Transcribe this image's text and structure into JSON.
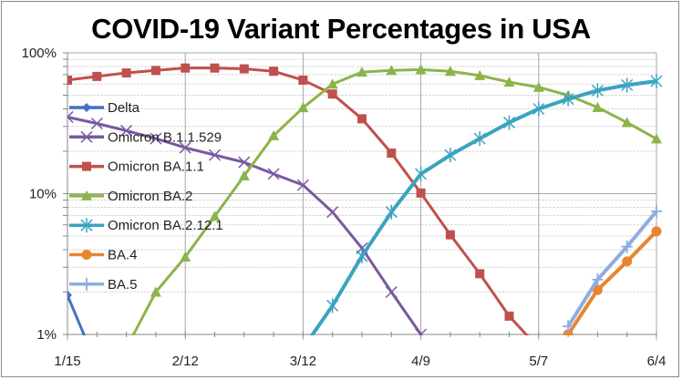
{
  "chart_data": {
    "type": "line",
    "title": "COVID-19 Variant Percentages in USA",
    "xlabel": "",
    "ylabel": "",
    "yscale": "log",
    "ylim": [
      1,
      100
    ],
    "y_ticks": [
      {
        "value": 1,
        "label": "1%"
      },
      {
        "value": 10,
        "label": "10%"
      },
      {
        "value": 100,
        "label": "100%"
      }
    ],
    "x": [
      "1/15",
      "1/22",
      "1/29",
      "2/5",
      "2/12",
      "2/19",
      "2/26",
      "3/5",
      "3/12",
      "3/19",
      "3/26",
      "4/2",
      "4/9",
      "4/16",
      "4/23",
      "4/30",
      "5/7",
      "5/14",
      "5/21",
      "5/28",
      "6/4"
    ],
    "x_tick_labels": [
      {
        "index": 0,
        "label": "1/15"
      },
      {
        "index": 4,
        "label": "2/12"
      },
      {
        "index": 8,
        "label": "3/12"
      },
      {
        "index": 12,
        "label": "4/9"
      },
      {
        "index": 16,
        "label": "5/7"
      },
      {
        "index": 20,
        "label": "6/4"
      }
    ],
    "grid": "horizontal minor + vertical major",
    "legend_position": "left-inside",
    "series": [
      {
        "name": "Delta",
        "color": "#4472c4",
        "marker": "diamond",
        "values": [
          1.9,
          0.6,
          null,
          null,
          null,
          null,
          null,
          null,
          null,
          null,
          null,
          null,
          null,
          null,
          null,
          null,
          null,
          null,
          null,
          null,
          null
        ]
      },
      {
        "name": "Omicron B.1.1.529",
        "color": "#7a59a0",
        "marker": "x",
        "values": [
          35,
          31.5,
          28,
          24.6,
          21.2,
          18.8,
          16.7,
          13.8,
          11.5,
          7.4,
          4.1,
          2.0,
          1.0,
          null,
          null,
          null,
          null,
          null,
          null,
          null,
          null
        ]
      },
      {
        "name": "Omicron BA.1.1",
        "color": "#c0504d",
        "marker": "square",
        "values": [
          64,
          68,
          72,
          75,
          78,
          78,
          77,
          74,
          64,
          51,
          34,
          19.4,
          10.1,
          5.1,
          2.7,
          1.35,
          0.8,
          null,
          null,
          null,
          null
        ]
      },
      {
        "name": "Omicron BA.2",
        "color": "#8cb44a",
        "marker": "triangle",
        "values": [
          null,
          null,
          0.8,
          2.0,
          3.55,
          6.9,
          13.4,
          25.8,
          40.8,
          60,
          73,
          75,
          76,
          74,
          69,
          62,
          57,
          50,
          41,
          32,
          24.5
        ]
      },
      {
        "name": "Omicron BA.2.12.1",
        "color": "#3ba3c0",
        "marker": "asterisk",
        "values": [
          null,
          null,
          null,
          null,
          null,
          null,
          null,
          null,
          0.8,
          1.6,
          3.6,
          7.4,
          13.8,
          18.8,
          24.6,
          32,
          40,
          47,
          54,
          59,
          63
        ]
      },
      {
        "name": "BA.4",
        "color": "#e8862f",
        "marker": "circle",
        "values": [
          null,
          null,
          null,
          null,
          null,
          null,
          null,
          null,
          null,
          null,
          null,
          null,
          null,
          null,
          null,
          null,
          null,
          1.0,
          2.07,
          3.3,
          5.4
        ]
      },
      {
        "name": "BA.5",
        "color": "#8eaee0",
        "marker": "plus",
        "values": [
          null,
          null,
          null,
          null,
          null,
          null,
          null,
          null,
          null,
          null,
          null,
          null,
          null,
          null,
          null,
          null,
          null,
          1.14,
          2.45,
          4.2,
          7.5
        ]
      }
    ]
  }
}
